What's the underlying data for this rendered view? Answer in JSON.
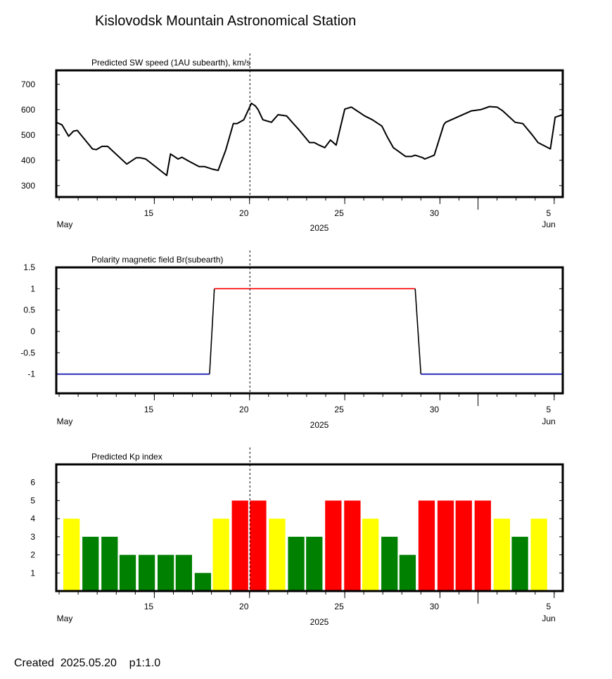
{
  "title": "Kislovodsk Mountain Astronomical Station",
  "footer": "Created  2025.05.20    p1:1.0",
  "chart_data": [
    {
      "type": "line",
      "title": "Predicted SW speed (1AU subearth), km/s",
      "x_unit": "days since May 10, 2025",
      "xlim": [
        0,
        26.6
      ],
      "ylim": [
        255,
        755
      ],
      "yticks": [
        "700",
        "600",
        "500",
        "400",
        "300"
      ],
      "ytick_values": [
        700,
        600,
        500,
        400,
        300
      ],
      "xticks": [
        "15",
        "20",
        "25",
        "30",
        "5"
      ],
      "month_labels": [
        "May",
        "Jun"
      ],
      "year_label": "2025",
      "current_time_day": 10.15,
      "series": [
        {
          "name": "",
          "color": "#000000",
          "x": [
            0,
            0.3,
            0.65,
            0.9,
            1.1,
            1.9,
            2.1,
            2.4,
            2.7,
            3.7,
            4.2,
            4.4,
            4.7,
            5.8,
            6.0,
            6.4,
            6.6,
            7.0,
            7.5,
            7.8,
            8.2,
            8.5,
            8.9,
            9.3,
            9.5,
            9.85,
            10.25,
            10.45,
            10.6,
            10.85,
            11.3,
            11.65,
            12.1,
            12.45,
            12.75,
            13.3,
            13.55,
            13.8,
            14.1,
            14.4,
            14.7,
            15.15,
            15.5,
            16.2,
            16.6,
            17.1,
            17.4,
            17.7,
            18.35,
            18.65,
            18.85,
            19.25,
            19.35,
            19.85,
            20.35,
            20.45,
            21.8,
            22.3,
            22.75,
            23.15,
            23.45,
            24.1,
            24.5,
            25.0,
            25.3,
            25.95,
            26.2,
            26.6,
            26.6
          ],
          "y": [
            550,
            540,
            495,
            515,
            518,
            445,
            442,
            455,
            455,
            385,
            410,
            410,
            405,
            340,
            425,
            405,
            412,
            395,
            375,
            375,
            365,
            360,
            440,
            545,
            545,
            560,
            625,
            615,
            600,
            560,
            550,
            580,
            575,
            545,
            520,
            470,
            470,
            460,
            450,
            480,
            460,
            602,
            610,
            575,
            560,
            535,
            490,
            450,
            415,
            415,
            420,
            410,
            405,
            420,
            540,
            550,
            595,
            600,
            612,
            610,
            595,
            550,
            545,
            500,
            470,
            445,
            570,
            580,
            578
          ]
        }
      ]
    },
    {
      "type": "line",
      "title": "Polarity magnetic field  Br(subearth)",
      "x_unit": "days since May 10, 2025",
      "xlim": [
        0,
        26.6
      ],
      "ylim": [
        -1.45,
        1.5
      ],
      "yticks": [
        "1.5",
        "1",
        "0.5",
        "0",
        "-0.5",
        "-1"
      ],
      "ytick_values": [
        1.5,
        1,
        0.5,
        0,
        -0.5,
        -1
      ],
      "xticks": [
        "15",
        "20",
        "25",
        "30",
        "5"
      ],
      "month_labels": [
        "May",
        "Jun"
      ],
      "year_label": "2025",
      "current_time_day": 10.15,
      "series": [
        {
          "name": "negative",
          "color": "#0000aa",
          "x": [
            0,
            8.05
          ],
          "y": [
            -1,
            -1
          ]
        },
        {
          "name": "transition",
          "color": "#000000",
          "x": [
            8.05,
            8.3
          ],
          "y": [
            -1,
            1
          ]
        },
        {
          "name": "positive",
          "color": "#ff0000",
          "x": [
            8.3,
            18.85
          ],
          "y": [
            1,
            1
          ]
        },
        {
          "name": "transition",
          "color": "#000000",
          "x": [
            18.85,
            19.15
          ],
          "y": [
            1,
            -1
          ]
        },
        {
          "name": "negative",
          "color": "#0000aa",
          "x": [
            19.15,
            26.6
          ],
          "y": [
            -1,
            -1
          ]
        }
      ]
    },
    {
      "type": "bar",
      "title": "Predicted Kp index",
      "x_unit": "days since May 10, 2025",
      "xlim": [
        0,
        26.6
      ],
      "ylim": [
        0,
        7
      ],
      "yticks": [
        "6",
        "5",
        "4",
        "3",
        "2",
        "1"
      ],
      "ytick_values": [
        6,
        5,
        4,
        3,
        2,
        1
      ],
      "xticks": [
        "15",
        "20",
        "25",
        "30",
        "5"
      ],
      "month_labels": [
        "May",
        "Jun"
      ],
      "year_label": "2025",
      "current_time_day": 10.15,
      "bar_centers": [
        0.8,
        1.8,
        2.8,
        3.75,
        4.75,
        5.75,
        6.7,
        7.7,
        8.65,
        9.65,
        10.6,
        11.6,
        12.6,
        13.55,
        14.55,
        15.55,
        16.5,
        17.5,
        18.45,
        19.45,
        20.45,
        21.4,
        22.4,
        23.4,
        24.35,
        25.35
      ],
      "values": [
        4,
        3,
        3,
        2,
        2,
        2,
        2,
        1,
        4,
        5,
        5,
        4,
        3,
        3,
        5,
        5,
        4,
        3,
        2,
        5,
        5,
        5,
        5,
        4,
        3,
        4
      ],
      "colors": {
        "4": "#ffff00",
        "3": "#008000",
        "2": "#008000",
        "1": "#008000",
        "5": "#ff0000"
      }
    }
  ]
}
